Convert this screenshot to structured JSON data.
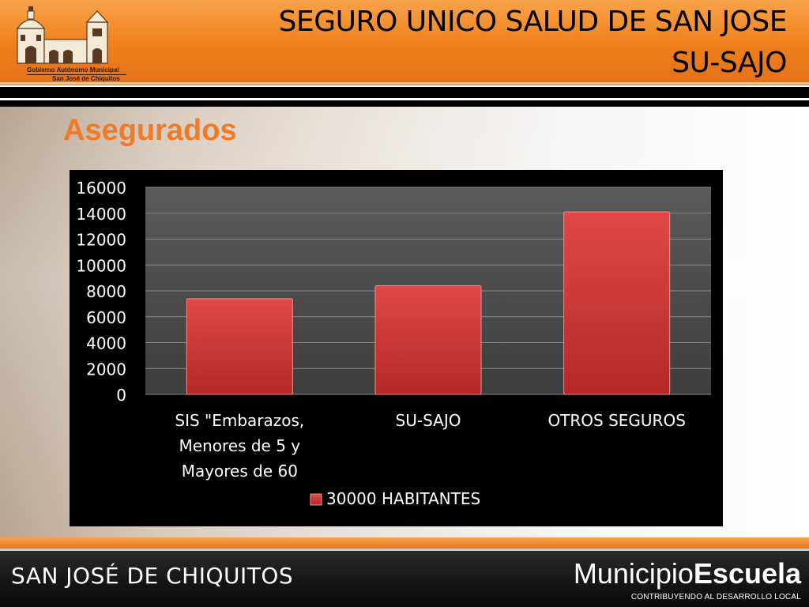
{
  "header": {
    "logo_line1": "Gobierno Autónomo Municipal",
    "logo_line2": "San José de Chiquitos",
    "title_line1": "SEGURO UNICO SALUD DE SAN JOSE",
    "title_line2": "SU-SAJO"
  },
  "subtitle": "Asegurados",
  "colors": {
    "header_orange": "#ef7f1a",
    "subtitle_orange": "#ef7a28",
    "bar_red": "#d63a3a",
    "chart_bg": "#000000"
  },
  "chart_data": {
    "type": "bar",
    "categories": [
      [
        "SIS \"Embarazos,",
        "Menores de 5 y",
        "Mayores de 60"
      ],
      [
        "SU-SAJO"
      ],
      [
        "OTROS SEGUROS"
      ]
    ],
    "series": [
      {
        "name": "30000 HABITANTES",
        "values": [
          7400,
          8400,
          14100
        ]
      }
    ],
    "ylim": [
      0,
      16000
    ],
    "yticks": [
      "0",
      "2000",
      "4000",
      "6000",
      "8000",
      "10000",
      "12000",
      "14000",
      "16000"
    ],
    "grid": true,
    "legend": "bottom"
  },
  "footer": {
    "left": "SAN JOSÉ DE CHIQUITOS",
    "brand_regular": "Municipio",
    "brand_bold": "Escuela",
    "tagline": "CONTRIBUYENDO AL DESARROLLO LOCAL"
  }
}
